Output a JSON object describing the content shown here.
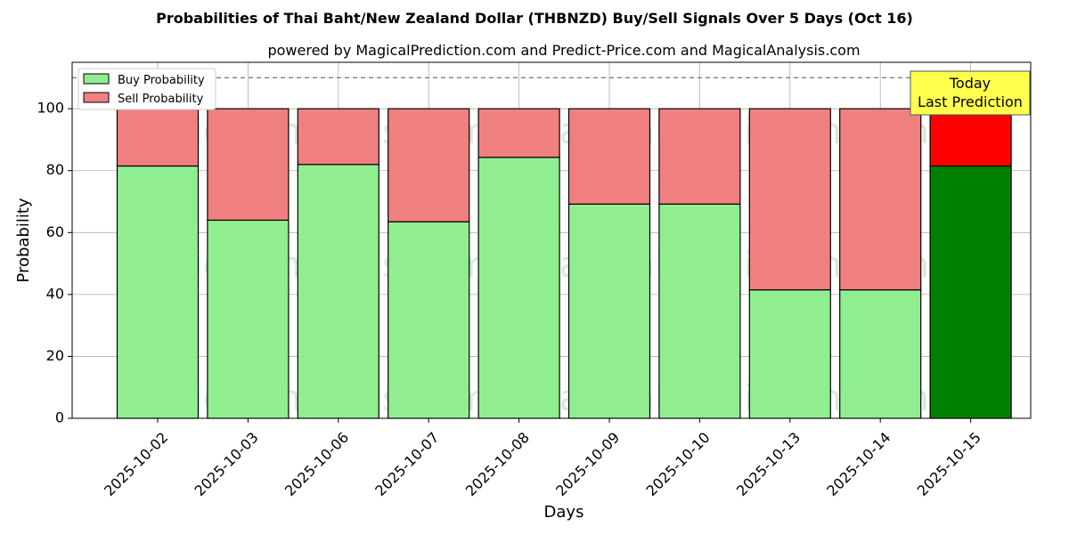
{
  "chart_data": {
    "type": "bar",
    "stacked": true,
    "title": "Probabilities of Thai Baht/New Zealand Dollar (THBNZD) Buy/Sell Signals Over 5 Days (Oct 16)",
    "subtitle": "powered by MagicalPrediction.com and Predict-Price.com and MagicalAnalysis.com",
    "xlabel": "Days",
    "ylabel": "Probability",
    "ylim": [
      0,
      115
    ],
    "yticks": [
      0,
      20,
      40,
      60,
      80,
      100
    ],
    "grid": true,
    "legend_position": "top-left",
    "reference_line": 110,
    "categories": [
      "2025-10-02",
      "2025-10-03",
      "2025-10-06",
      "2025-10-07",
      "2025-10-08",
      "2025-10-09",
      "2025-10-10",
      "2025-10-13",
      "2025-10-14",
      "2025-10-15"
    ],
    "series": [
      {
        "name": "Buy Probability",
        "values": [
          81.5,
          64.0,
          82.0,
          63.5,
          84.3,
          69.2,
          69.2,
          41.5,
          41.5,
          81.5
        ],
        "color": "#90ee90",
        "highlight_color": "#008000"
      },
      {
        "name": "Sell Probability",
        "values": [
          18.5,
          36.0,
          18.0,
          36.5,
          15.7,
          30.8,
          30.8,
          58.5,
          58.5,
          18.5
        ],
        "color": "#f08080",
        "highlight_color": "#ff0000"
      }
    ],
    "highlight_index": 9,
    "annotation": {
      "line1": "Today",
      "line2": "Last Prediction",
      "bg": "#ffff4d"
    },
    "watermarks": [
      "MagicalAnalysis.com",
      "MagicalPrediction.com"
    ]
  }
}
